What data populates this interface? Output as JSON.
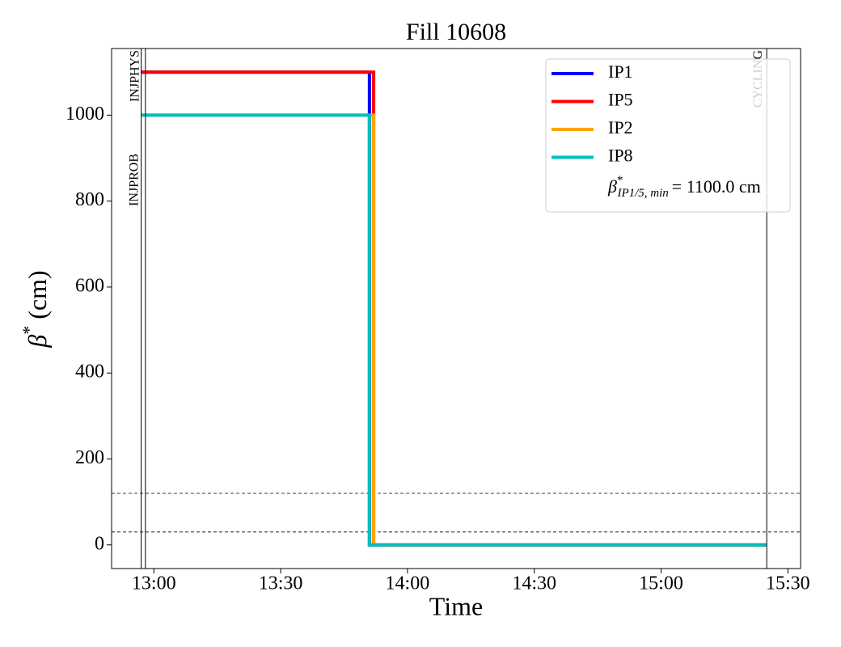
{
  "chart_data": {
    "type": "line",
    "title": "Fill 10608",
    "xlabel": "Time",
    "ylabel": {
      "symbol": "β",
      "sup": "*",
      "unit": "(cm)"
    },
    "xlim": [
      "12:50",
      "15:33"
    ],
    "xticks": [
      "13:00",
      "13:30",
      "14:00",
      "14:30",
      "15:00",
      "15:30"
    ],
    "ylim": [
      -55,
      1155
    ],
    "yticks": [
      0,
      200,
      400,
      600,
      800,
      1000
    ],
    "series": [
      {
        "name": "IP1",
        "color": "#0000ff",
        "x": [
          "12:57",
          "13:51",
          "13:51",
          "15:25"
        ],
        "values": [
          1100,
          1100,
          0,
          0
        ]
      },
      {
        "name": "IP5",
        "color": "#ff0000",
        "x": [
          "12:57",
          "13:52",
          "13:52",
          "15:25"
        ],
        "values": [
          1100,
          1100,
          0,
          0
        ]
      },
      {
        "name": "IP2",
        "color": "#ffa500",
        "x": [
          "12:57",
          "13:52",
          "13:52",
          "15:25"
        ],
        "values": [
          1000,
          1000,
          0,
          0
        ]
      },
      {
        "name": "IP8",
        "color": "#00bfbf",
        "x": [
          "12:57",
          "13:51",
          "13:51",
          "15:25"
        ],
        "values": [
          1000,
          1000,
          0,
          0
        ]
      }
    ],
    "events": [
      {
        "label": "INJPROB",
        "x": "12:57"
      },
      {
        "label": "INJPHYS",
        "x": "12:58"
      },
      {
        "label": "CYCLING",
        "x": "15:25"
      }
    ],
    "hlines": [
      120,
      30
    ],
    "legend_note": {
      "symbol": "β",
      "sup": "*",
      "sub": "IP1/5, min",
      "text": "= 1100.0 cm"
    },
    "legend": "upper right"
  }
}
